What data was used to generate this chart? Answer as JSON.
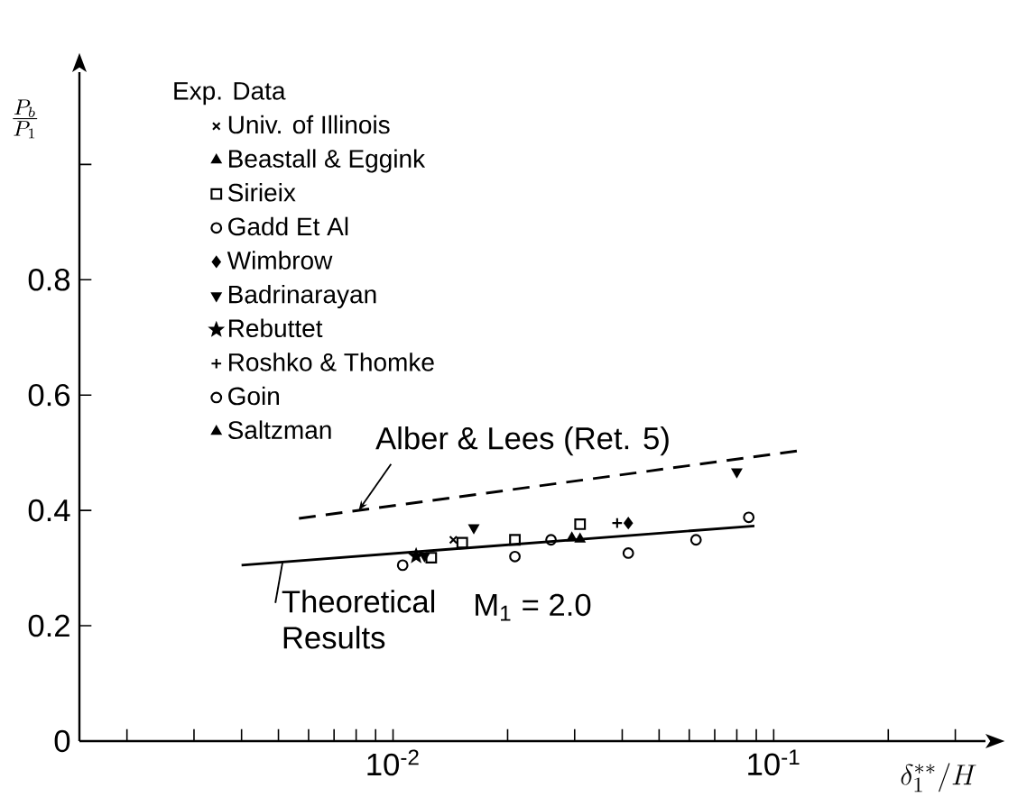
{
  "chart_data": {
    "type": "scatter",
    "xlabel": "\\delta_1^{**}/H",
    "ylabel": "\\frac{P_b}{P_1}",
    "legend_title": "Exp. Data",
    "legend": "top left",
    "log": "x",
    "grid": false,
    "xlim": [
      0.0015,
      0.36
    ],
    "ylim": [
      0,
      1.16
    ],
    "xticks": [
      {
        "value": 0.002,
        "label": null
      },
      {
        "value": 0.003,
        "label": null
      },
      {
        "value": 0.004,
        "label": null
      },
      {
        "value": 0.005,
        "label": null
      },
      {
        "value": 0.006,
        "label": null
      },
      {
        "value": 0.007,
        "label": null
      },
      {
        "value": 0.008,
        "label": null
      },
      {
        "value": 0.009,
        "label": null
      },
      {
        "value": 0.01,
        "label": "10$^{-2}$"
      },
      {
        "value": 0.02,
        "label": null
      },
      {
        "value": 0.03,
        "label": null
      },
      {
        "value": 0.04,
        "label": null
      },
      {
        "value": 0.05,
        "label": null
      },
      {
        "value": 0.06,
        "label": null
      },
      {
        "value": 0.07,
        "label": null
      },
      {
        "value": 0.08,
        "label": null
      },
      {
        "value": 0.09,
        "label": null
      },
      {
        "value": 0.1,
        "label": "10$^{-1}$"
      },
      {
        "value": 0.2,
        "label": null
      },
      {
        "value": 0.3,
        "label": null
      }
    ],
    "yticks": [
      {
        "value": 0,
        "label": "0"
      },
      {
        "value": 0.2,
        "label": "0.2"
      },
      {
        "value": 0.4,
        "label": "0.4"
      },
      {
        "value": 0.6,
        "label": "0.6"
      },
      {
        "value": 0.8,
        "label": "0.8"
      },
      {
        "value": 1.0,
        "label": null
      }
    ],
    "annotations": [
      "M$_{1}$ = 2.0"
    ],
    "series": [
      {
        "name": "Univ. of Illinois",
        "color": "#000000",
        "marker": "cross",
        "x": [
          0.0144
        ],
        "values": [
          0.349
        ]
      },
      {
        "name": "Beastall & Eggink",
        "color": "#000000",
        "marker": "triangle",
        "x": [
          0.031
        ],
        "values": [
          0.35
        ]
      },
      {
        "name": "Sirieix",
        "color": "#000000",
        "marker": "square",
        "x": [
          0.0126,
          0.0152,
          0.0209,
          0.031
        ],
        "values": [
          0.318,
          0.344,
          0.349,
          0.376
        ]
      },
      {
        "name": "Gadd Et Al",
        "color": "#000000",
        "marker": "circle",
        "x": [
          0.0106,
          0.0209,
          0.0415,
          0.0625
        ],
        "values": [
          0.305,
          0.32,
          0.326,
          0.349
        ]
      },
      {
        "name": "Wimbrow",
        "color": "#000000",
        "marker": "diamond",
        "x": [
          0.0415
        ],
        "values": [
          0.378
        ]
      },
      {
        "name": "Badrinarayan",
        "color": "#000000",
        "marker": "triangle_down",
        "x": [
          0.0121,
          0.0163,
          0.08
        ],
        "values": [
          0.321,
          0.37,
          0.467
        ]
      },
      {
        "name": "Rebuttet",
        "color": "#000000",
        "marker": "star",
        "x": [
          0.0115
        ],
        "values": [
          0.321
        ]
      },
      {
        "name": "Roshko & Thomke",
        "color": "#000000",
        "marker": "plus",
        "x": [
          0.0388
        ],
        "values": [
          0.378
        ]
      },
      {
        "name": "Goin",
        "color": "#000000",
        "marker": "circle",
        "x": [
          0.026,
          0.086
        ],
        "values": [
          0.349,
          0.388
        ]
      },
      {
        "name": "Saltzman",
        "color": "#000000",
        "marker": "triangle",
        "x": [
          0.0295
        ],
        "values": [
          0.352
        ]
      },
      {
        "name": "Alber & Lees (Ret. 5)",
        "type": "line",
        "line_style": "dashed",
        "color": "#000000",
        "x": [
          0.00566,
          0.115
        ],
        "values": [
          0.386,
          0.503
        ]
      },
      {
        "name": "Theoretical Results",
        "type": "line",
        "line_style": "solid",
        "color": "#000000",
        "x": [
          0.004,
          0.089
        ],
        "values": [
          0.305,
          0.373
        ]
      }
    ]
  }
}
